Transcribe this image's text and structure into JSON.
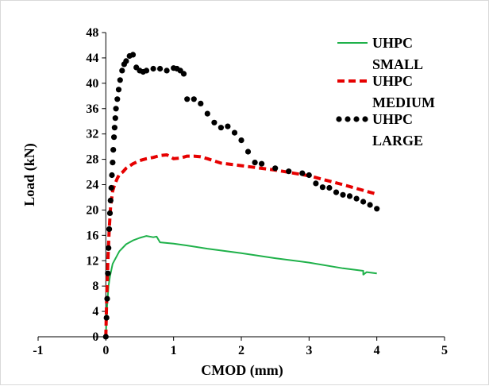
{
  "chart_data": {
    "type": "line",
    "title": "",
    "xlabel": "CMOD (mm)",
    "ylabel": "Load (kN)",
    "xlim": [
      -1,
      5
    ],
    "ylim": [
      0,
      48
    ],
    "x_ticks": [
      "-1",
      "0",
      "1",
      "2",
      "3",
      "4",
      "5"
    ],
    "y_ticks": [
      "0",
      "4",
      "8",
      "12",
      "16",
      "20",
      "24",
      "28",
      "32",
      "36",
      "40",
      "44",
      "48"
    ],
    "grid": false,
    "legend_position": "top-right",
    "series": [
      {
        "name_lines": [
          "UHPC",
          "SMALL"
        ],
        "color": "#1fb14a",
        "style": "solid",
        "x": [
          0,
          0.02,
          0.04,
          0.06,
          0.08,
          0.1,
          0.15,
          0.2,
          0.3,
          0.4,
          0.5,
          0.6,
          0.7,
          0.75,
          0.8,
          1.0,
          1.2,
          1.5,
          2.0,
          2.5,
          3.0,
          3.5,
          3.8,
          3.8,
          3.85,
          4.0
        ],
        "y": [
          0,
          5,
          8,
          9.5,
          10.5,
          11.5,
          12.5,
          13.5,
          14.6,
          15.2,
          15.6,
          15.9,
          15.7,
          15.8,
          14.9,
          14.7,
          14.4,
          13.9,
          13.2,
          12.4,
          11.7,
          10.8,
          10.4,
          9.8,
          10.2,
          10.0
        ]
      },
      {
        "name_lines": [
          "UHPC",
          "MEDIUM"
        ],
        "color": "#e60000",
        "style": "dashed",
        "x": [
          0,
          0.01,
          0.03,
          0.05,
          0.07,
          0.1,
          0.13,
          0.17,
          0.2,
          0.25,
          0.3,
          0.4,
          0.5,
          0.6,
          0.7,
          0.8,
          0.9,
          1.0,
          1.1,
          1.2,
          1.3,
          1.4,
          1.5,
          1.7,
          2.0,
          2.5,
          3.0,
          3.5,
          4.0
        ],
        "y": [
          0,
          5,
          12,
          17,
          20.5,
          23,
          24,
          25,
          25.6,
          26,
          26.6,
          27.3,
          27.8,
          28.1,
          28.3,
          28.6,
          28.7,
          28.1,
          28.2,
          28.5,
          28.5,
          28.4,
          28.1,
          27.4,
          27.0,
          26.3,
          25.4,
          24.0,
          22.5
        ]
      },
      {
        "name_lines": [
          "UHPC",
          "LARGE"
        ],
        "color": "#000000",
        "style": "dotted",
        "x": [
          0,
          0.01,
          0.02,
          0.03,
          0.04,
          0.05,
          0.06,
          0.07,
          0.08,
          0.09,
          0.1,
          0.11,
          0.12,
          0.13,
          0.14,
          0.15,
          0.17,
          0.19,
          0.21,
          0.24,
          0.27,
          0.3,
          0.35,
          0.4,
          0.45,
          0.5,
          0.55,
          0.6,
          0.7,
          0.8,
          0.9,
          1.0,
          1.05,
          1.1,
          1.15,
          1.2,
          1.3,
          1.4,
          1.5,
          1.6,
          1.7,
          1.8,
          1.9,
          2.0,
          2.1,
          2.2,
          2.3,
          2.5,
          2.7,
          2.9,
          3.0,
          3.1,
          3.2,
          3.3,
          3.4,
          3.5,
          3.6,
          3.7,
          3.8,
          3.9,
          4.0
        ],
        "y": [
          0,
          3,
          6,
          10,
          14,
          17,
          19.5,
          21.5,
          23.5,
          25.5,
          27.5,
          29.5,
          31.5,
          33,
          34.5,
          36,
          37.5,
          39,
          40.5,
          42,
          43,
          43.5,
          44.3,
          44.5,
          42.5,
          42,
          41.8,
          42,
          42.3,
          42.3,
          42,
          42.4,
          42.3,
          42,
          41.5,
          37.5,
          37.5,
          36.8,
          35.2,
          33.8,
          33,
          33.2,
          32.2,
          31,
          29.2,
          27.5,
          27.3,
          26.6,
          26.1,
          25.8,
          25.5,
          24.2,
          23.6,
          23.5,
          22.8,
          22.4,
          22.2,
          21.8,
          21.3,
          20.8,
          20.2
        ]
      }
    ]
  }
}
